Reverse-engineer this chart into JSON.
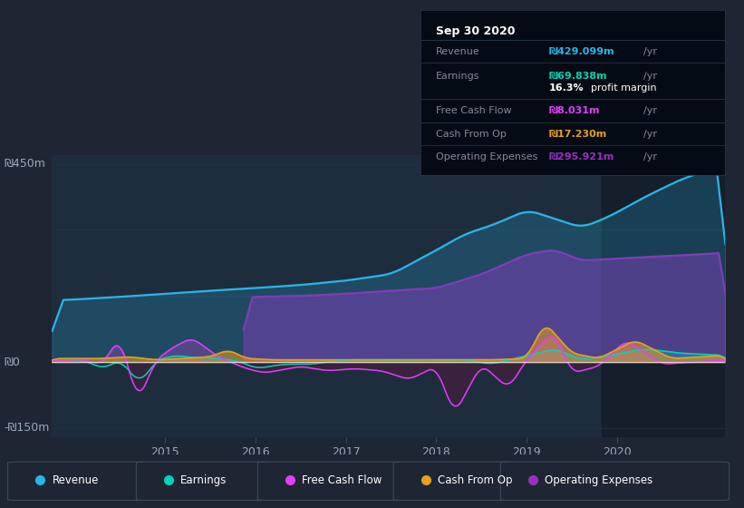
{
  "bg_color": "#1e2533",
  "plot_bg": "#1e2d3d",
  "title": "Sep 30 2020",
  "xmin": 2013.75,
  "xmax": 2021.2,
  "ymin": -170,
  "ymax": 470,
  "ytick_positions": [
    -150,
    0,
    450
  ],
  "ytick_labels": [
    "-₪150m",
    "₪0",
    "₪450m"
  ],
  "xticks": [
    2015,
    2016,
    2017,
    2018,
    2019,
    2020
  ],
  "highlight_x_start": 2019.83,
  "highlight_x_end": 2021.2,
  "colors": {
    "revenue": "#29b5e8",
    "op_expenses": "#7b3fb5",
    "earnings": "#00d4b8",
    "free_cash_flow": "#e040fb",
    "cash_from_op": "#e8a020"
  },
  "legend_items": [
    {
      "label": "Revenue",
      "color": "#29b5e8"
    },
    {
      "label": "Earnings",
      "color": "#00d4b8"
    },
    {
      "label": "Free Cash Flow",
      "color": "#e040fb"
    },
    {
      "label": "Cash From Op",
      "color": "#e8a020"
    },
    {
      "label": "Operating Expenses",
      "color": "#9b30c0"
    }
  ],
  "info_rows": [
    {
      "label": "Revenue",
      "value": "₪429.099m /yr",
      "color": "#29b5e8"
    },
    {
      "label": "Earnings",
      "value": "₪69.838m /yr",
      "color": "#00d4b8"
    },
    {
      "label": "",
      "value": "16.3% profit margin",
      "color": "#ffffff"
    },
    {
      "label": "Free Cash Flow",
      "value": "₪8.031m /yr",
      "color": "#e040fb"
    },
    {
      "label": "Cash From Op",
      "value": "₪17.230m /yr",
      "color": "#e8a020"
    },
    {
      "label": "Operating Expenses",
      "value": "₪295.921m /yr",
      "color": "#9b30c0"
    }
  ]
}
